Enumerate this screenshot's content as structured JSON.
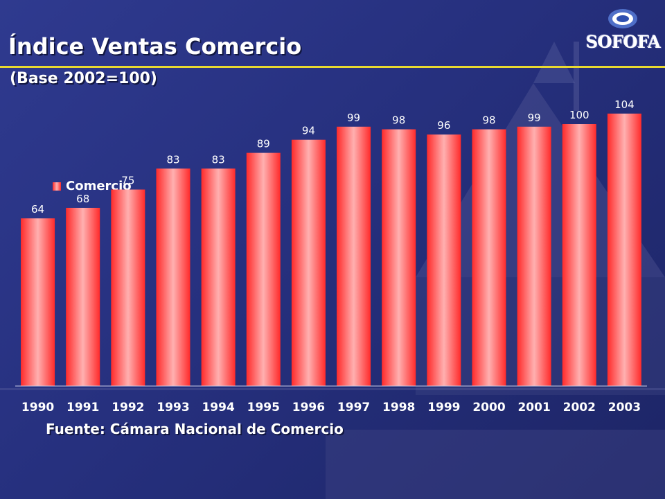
{
  "slide": {
    "title": "Índice Ventas Comercio",
    "subtitle": "(Base 2002=100)",
    "source": "Fuente: Cámara Nacional de Comercio",
    "logo_text": "SOFOFA"
  },
  "colors": {
    "background": "#2a3488",
    "bar": "#ff2a2a",
    "bar_highlight": "#ffb0b0",
    "title_rule": "#e8d930",
    "text": "#ffffff"
  },
  "chart_data": {
    "type": "bar",
    "categories": [
      "1990",
      "1991",
      "1992",
      "1993",
      "1994",
      "1995",
      "1996",
      "1997",
      "1998",
      "1999",
      "2000",
      "2001",
      "2002",
      "2003"
    ],
    "series": [
      {
        "name": "Comercio",
        "values": [
          64,
          68,
          75,
          83,
          83,
          89,
          94,
          99,
          98,
          96,
          98,
          99,
          100,
          104
        ]
      }
    ],
    "title": "Índice Ventas Comercio",
    "subtitle": "(Base 2002=100)",
    "xlabel": "",
    "ylabel": "",
    "ylim": [
      0,
      104
    ],
    "grid": false,
    "legend": "left"
  }
}
